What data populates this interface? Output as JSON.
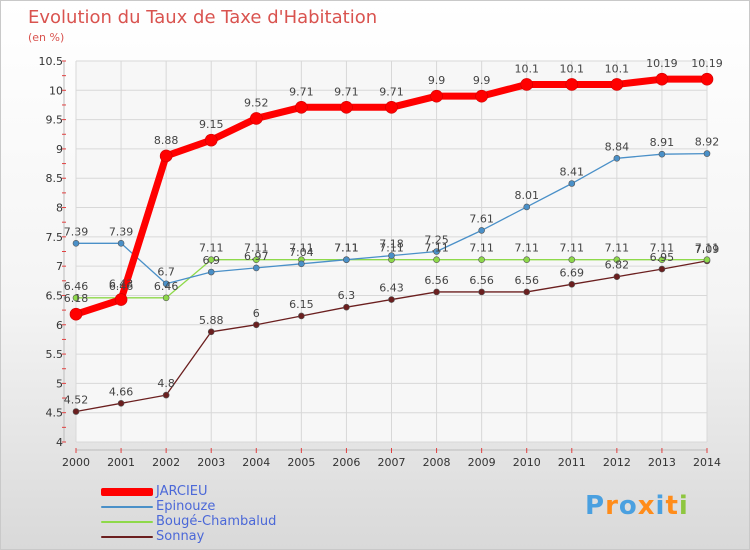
{
  "chart_data": {
    "type": "line",
    "title": "Evolution du Taux de Taxe d'Habitation",
    "subtitle": "(en %)",
    "x": [
      "2000",
      "2001",
      "2002",
      "2003",
      "2004",
      "2005",
      "2006",
      "2007",
      "2008",
      "2009",
      "2010",
      "2011",
      "2012",
      "2013",
      "2014"
    ],
    "ylim": [
      4,
      10.5
    ],
    "yticks": [
      "4",
      "4.5",
      "5",
      "5.5",
      "6",
      "6.5",
      "7",
      "7.5",
      "8",
      "8.5",
      "9",
      "9.5",
      "10",
      "10.5"
    ],
    "grid": true,
    "legend_position": "bottom-left",
    "series": [
      {
        "name": "JARCIEU",
        "color": "#ff0000",
        "values": [
          6.18,
          6.43,
          8.88,
          9.15,
          9.52,
          9.71,
          9.71,
          9.71,
          9.9,
          9.9,
          10.1,
          10.1,
          10.1,
          10.19,
          10.19
        ],
        "labels": [
          "6.18",
          "6.43",
          "8.88",
          "9.15",
          "9.52",
          "9.71",
          "9.71",
          "9.71",
          "9.9",
          "9.9",
          "10.1",
          "10.1",
          "10.1",
          "10.19",
          "10.19"
        ]
      },
      {
        "name": "Epinouze",
        "color": "#4a90c8",
        "values": [
          7.39,
          7.39,
          6.7,
          6.9,
          6.97,
          7.04,
          7.11,
          7.18,
          7.25,
          7.61,
          8.01,
          8.41,
          8.84,
          8.91,
          8.92
        ],
        "labels": [
          "7.39",
          "7.39",
          "6.7",
          "6.9",
          "6.97",
          "7.04",
          "7.11",
          "7.18",
          "7.25",
          "7.61",
          "8.01",
          "8.41",
          "8.84",
          "8.91",
          "8.92"
        ]
      },
      {
        "name": "Bougé-Chambalud",
        "color": "#8ed94a",
        "values": [
          6.46,
          6.46,
          6.46,
          7.11,
          7.11,
          7.11,
          7.11,
          7.11,
          7.11,
          7.11,
          7.11,
          7.11,
          7.11,
          7.11,
          7.11
        ],
        "labels": [
          "6.46",
          "6.46",
          "6.46",
          "7.11",
          "7.11",
          "7.11",
          "7.11",
          "7.11",
          "7.11",
          "7.11",
          "7.11",
          "7.11",
          "7.11",
          "7.11",
          "7.11"
        ]
      },
      {
        "name": "Sonnay",
        "color": "#6b1f1f",
        "values": [
          4.52,
          4.66,
          4.8,
          5.88,
          6.0,
          6.15,
          6.3,
          6.43,
          6.56,
          6.56,
          6.56,
          6.69,
          6.82,
          6.95,
          7.09
        ],
        "labels": [
          "4.52",
          "4.66",
          "4.8",
          "5.88",
          "6",
          "6.15",
          "6.3",
          "6.43",
          "6.56",
          "6.56",
          "6.56",
          "6.69",
          "6.82",
          "6.95",
          "7.09"
        ]
      }
    ]
  },
  "logo": {
    "letters": [
      "P",
      "r",
      "o",
      "x",
      "i",
      "t",
      "i"
    ],
    "colors": [
      "#4aa0e0",
      "#ff8c1a",
      "#4aa0e0",
      "#ff8c1a",
      "#4aa0e0",
      "#ff8c1a",
      "#8ec63f"
    ]
  }
}
